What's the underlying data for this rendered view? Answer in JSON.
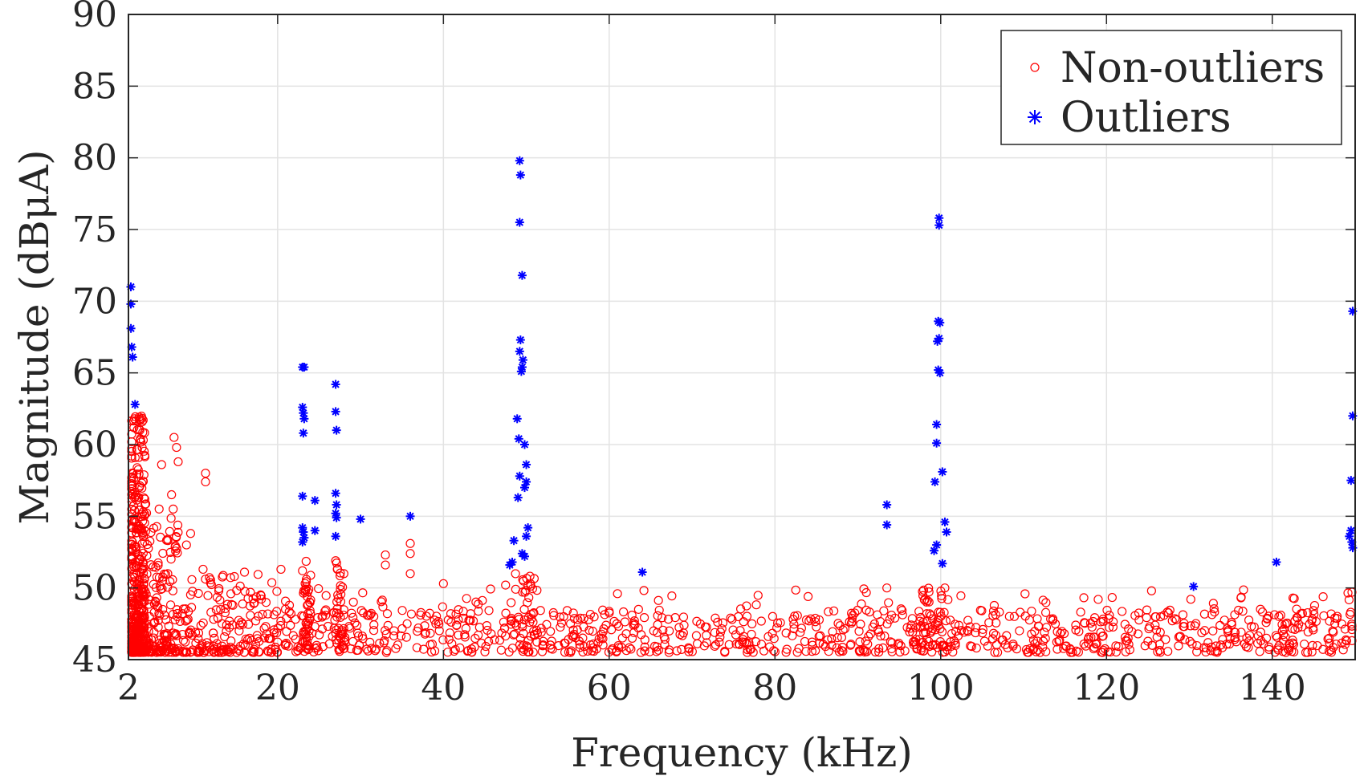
{
  "chart_data": {
    "type": "scatter",
    "title": "",
    "xlabel": "Frequency (kHz)",
    "ylabel": "Magnitude (dBμA)",
    "xlim": [
      2,
      150
    ],
    "ylim": [
      45,
      90
    ],
    "x_ticks": [
      2,
      20,
      40,
      60,
      80,
      100,
      120,
      140
    ],
    "x_tick_labels": [
      "2",
      "20",
      "40",
      "60",
      "80",
      "100",
      "120",
      "140"
    ],
    "y_ticks": [
      45,
      50,
      55,
      60,
      65,
      70,
      75,
      80,
      85,
      90
    ],
    "y_tick_labels": [
      "45",
      "50",
      "55",
      "60",
      "65",
      "70",
      "75",
      "80",
      "85",
      "90"
    ],
    "grid": true,
    "legend_position": "top-right",
    "series": [
      {
        "name": "Non-outliers",
        "marker": "circle",
        "color": "#ff0000",
        "clusters": [
          {
            "x_range": [
              2,
              4
            ],
            "y_range": [
              45.5,
              62
            ],
            "count": 420,
            "skew": 2.2
          },
          {
            "x_range": [
              4,
              8
            ],
            "y_range": [
              45.5,
              56
            ],
            "count": 160,
            "skew": 2.5
          },
          {
            "x_range": [
              8,
              20
            ],
            "y_range": [
              45.5,
              51
            ],
            "count": 190,
            "skew": 2.5
          },
          {
            "x_range": [
              20,
              150
            ],
            "y_range": [
              45.5,
              48.5
            ],
            "count": 900,
            "skew": 1.4
          },
          {
            "x_range": [
              20,
              150
            ],
            "y_range": [
              48.5,
              50
            ],
            "count": 60,
            "skew": 1.0
          },
          {
            "x_range": [
              23,
              24
            ],
            "y_range": [
              45.5,
              52
            ],
            "count": 40,
            "skew": 1.5
          },
          {
            "x_range": [
              27,
              28
            ],
            "y_range": [
              45.5,
              52
            ],
            "count": 30,
            "skew": 1.5
          },
          {
            "x_range": [
              48,
              51
            ],
            "y_range": [
              45.5,
              51
            ],
            "count": 40,
            "skew": 1.6
          },
          {
            "x_range": [
              97,
              101
            ],
            "y_range": [
              45.5,
              50
            ],
            "count": 50,
            "skew": 1.5
          }
        ],
        "points": [
          {
            "x": 7.5,
            "y": 60.5
          },
          {
            "x": 7.8,
            "y": 59.8
          },
          {
            "x": 8.0,
            "y": 58.8
          },
          {
            "x": 7.2,
            "y": 56.5
          },
          {
            "x": 7.4,
            "y": 55.5
          },
          {
            "x": 6.0,
            "y": 58.6
          },
          {
            "x": 9.5,
            "y": 53.8
          },
          {
            "x": 9.0,
            "y": 53.0
          },
          {
            "x": 11.3,
            "y": 58.0
          },
          {
            "x": 11.3,
            "y": 57.4
          },
          {
            "x": 11.0,
            "y": 51.3
          },
          {
            "x": 16.0,
            "y": 51.1
          },
          {
            "x": 20.4,
            "y": 51.3
          },
          {
            "x": 23.0,
            "y": 51.2
          },
          {
            "x": 27.0,
            "y": 51.9
          },
          {
            "x": 27.2,
            "y": 51.3
          },
          {
            "x": 33.0,
            "y": 52.3
          },
          {
            "x": 33.0,
            "y": 51.6
          },
          {
            "x": 36.0,
            "y": 53.1
          },
          {
            "x": 36.0,
            "y": 52.4
          },
          {
            "x": 36.0,
            "y": 51.0
          },
          {
            "x": 40.0,
            "y": 50.3
          },
          {
            "x": 47.5,
            "y": 50.2
          },
          {
            "x": 61.0,
            "y": 49.6
          },
          {
            "x": 84.0,
            "y": 49.4
          },
          {
            "x": 93.5,
            "y": 50.0
          },
          {
            "x": 100.5,
            "y": 50.0
          },
          {
            "x": 119.0,
            "y": 49.2
          },
          {
            "x": 142.5,
            "y": 49.3
          },
          {
            "x": 150.0,
            "y": 49.7
          }
        ]
      },
      {
        "name": "Outliers",
        "marker": "asterisk",
        "color": "#0000ff",
        "points": [
          {
            "x": 2.1,
            "y": 71.0
          },
          {
            "x": 2.2,
            "y": 69.8
          },
          {
            "x": 2.3,
            "y": 68.1
          },
          {
            "x": 2.4,
            "y": 66.8
          },
          {
            "x": 2.5,
            "y": 66.1
          },
          {
            "x": 2.8,
            "y": 62.8
          },
          {
            "x": 23.0,
            "y": 65.4
          },
          {
            "x": 23.2,
            "y": 65.4
          },
          {
            "x": 23.0,
            "y": 62.6
          },
          {
            "x": 23.1,
            "y": 62.2
          },
          {
            "x": 23.2,
            "y": 61.8
          },
          {
            "x": 23.1,
            "y": 60.8
          },
          {
            "x": 23.0,
            "y": 56.4
          },
          {
            "x": 23.0,
            "y": 54.2
          },
          {
            "x": 23.1,
            "y": 53.9
          },
          {
            "x": 23.2,
            "y": 53.5
          },
          {
            "x": 23.0,
            "y": 53.2
          },
          {
            "x": 24.5,
            "y": 56.1
          },
          {
            "x": 24.5,
            "y": 54.0
          },
          {
            "x": 27.0,
            "y": 64.2
          },
          {
            "x": 27.0,
            "y": 62.3
          },
          {
            "x": 27.1,
            "y": 61.0
          },
          {
            "x": 27.0,
            "y": 56.6
          },
          {
            "x": 27.1,
            "y": 55.8
          },
          {
            "x": 27.0,
            "y": 55.2
          },
          {
            "x": 27.1,
            "y": 54.9
          },
          {
            "x": 27.0,
            "y": 53.6
          },
          {
            "x": 30.0,
            "y": 54.8
          },
          {
            "x": 36.0,
            "y": 55.0
          },
          {
            "x": 49.2,
            "y": 79.8
          },
          {
            "x": 49.3,
            "y": 78.8
          },
          {
            "x": 49.2,
            "y": 75.5
          },
          {
            "x": 49.5,
            "y": 71.8
          },
          {
            "x": 49.3,
            "y": 67.3
          },
          {
            "x": 49.2,
            "y": 66.5
          },
          {
            "x": 49.6,
            "y": 65.9
          },
          {
            "x": 49.5,
            "y": 65.4
          },
          {
            "x": 49.4,
            "y": 65.1
          },
          {
            "x": 48.9,
            "y": 61.8
          },
          {
            "x": 49.1,
            "y": 60.4
          },
          {
            "x": 49.8,
            "y": 60.0
          },
          {
            "x": 50.0,
            "y": 58.6
          },
          {
            "x": 49.2,
            "y": 57.8
          },
          {
            "x": 50.0,
            "y": 57.4
          },
          {
            "x": 49.8,
            "y": 57.0
          },
          {
            "x": 49.0,
            "y": 56.3
          },
          {
            "x": 50.2,
            "y": 54.2
          },
          {
            "x": 50.0,
            "y": 53.6
          },
          {
            "x": 48.5,
            "y": 53.3
          },
          {
            "x": 49.5,
            "y": 52.4
          },
          {
            "x": 49.8,
            "y": 52.2
          },
          {
            "x": 48.3,
            "y": 51.8
          },
          {
            "x": 48.0,
            "y": 51.6
          },
          {
            "x": 64.0,
            "y": 51.1
          },
          {
            "x": 93.5,
            "y": 55.8
          },
          {
            "x": 93.5,
            "y": 54.4
          },
          {
            "x": 99.8,
            "y": 75.8
          },
          {
            "x": 99.8,
            "y": 75.3
          },
          {
            "x": 99.7,
            "y": 68.6
          },
          {
            "x": 99.9,
            "y": 68.5
          },
          {
            "x": 99.8,
            "y": 67.4
          },
          {
            "x": 99.6,
            "y": 67.2
          },
          {
            "x": 99.7,
            "y": 65.2
          },
          {
            "x": 99.9,
            "y": 65.0
          },
          {
            "x": 99.5,
            "y": 61.4
          },
          {
            "x": 99.5,
            "y": 60.1
          },
          {
            "x": 100.2,
            "y": 58.1
          },
          {
            "x": 99.3,
            "y": 57.4
          },
          {
            "x": 100.5,
            "y": 54.6
          },
          {
            "x": 100.7,
            "y": 53.9
          },
          {
            "x": 99.5,
            "y": 53.0
          },
          {
            "x": 99.2,
            "y": 52.6
          },
          {
            "x": 100.2,
            "y": 51.7
          },
          {
            "x": 130.5,
            "y": 50.1
          },
          {
            "x": 140.5,
            "y": 51.8
          },
          {
            "x": 149.7,
            "y": 69.3
          },
          {
            "x": 149.7,
            "y": 62.0
          },
          {
            "x": 149.5,
            "y": 57.5
          },
          {
            "x": 149.5,
            "y": 54.0
          },
          {
            "x": 149.3,
            "y": 53.6
          },
          {
            "x": 149.6,
            "y": 53.2
          },
          {
            "x": 150.0,
            "y": 52.8
          }
        ]
      }
    ]
  }
}
